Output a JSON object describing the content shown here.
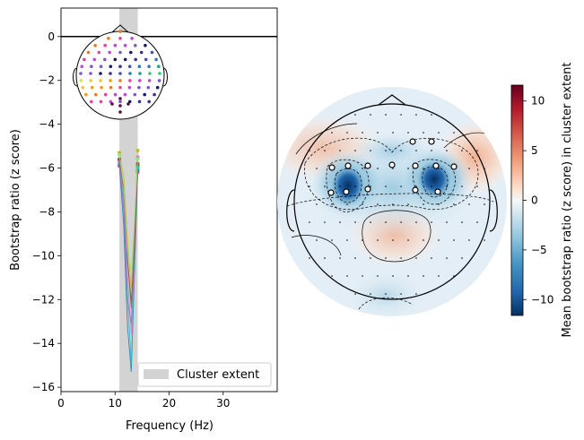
{
  "chart_data": [
    {
      "type": "line",
      "xlabel": "Frequency (Hz)",
      "ylabel": "Bootstrap ratio (z score)",
      "xlim": [
        0,
        40
      ],
      "ylim": [
        -16.2,
        1.3
      ],
      "xticks": [
        0,
        10,
        20,
        30
      ],
      "xtick_labels": [
        "0",
        "10",
        "20",
        "30"
      ],
      "yticks": [
        0,
        -2,
        -4,
        -6,
        -8,
        -10,
        -12,
        -14,
        -16
      ],
      "ytick_labels": [
        "0",
        "−2",
        "−4",
        "−6",
        "−8",
        "−10",
        "−12",
        "−14",
        "−16"
      ],
      "cluster_extent": [
        10.8,
        14.2
      ],
      "legend": {
        "label": "Cluster extent",
        "position": "lower-right"
      },
      "zero_line": 0,
      "series": [
        {
          "color": "#1f77b4",
          "x": [
            10.8,
            11.6,
            12.3,
            13.0,
            13.6,
            14.2
          ],
          "values": [
            -5.9,
            -8.6,
            -13.2,
            -15.3,
            -10.8,
            -6.1
          ]
        },
        {
          "color": "#2ca02c",
          "x": [
            10.8,
            11.6,
            12.3,
            13.0,
            13.6,
            14.2
          ],
          "values": [
            -5.6,
            -6.9,
            -10.1,
            -12.4,
            -9.2,
            -5.9
          ]
        },
        {
          "color": "#17becf",
          "x": [
            10.8,
            11.6,
            12.3,
            13.0,
            13.6,
            14.2
          ],
          "values": [
            -5.8,
            -7.6,
            -11.8,
            -14.9,
            -10.3,
            -6.0
          ]
        },
        {
          "color": "#e377c2",
          "x": [
            10.8,
            11.6,
            12.3,
            13.0,
            13.6,
            14.2
          ],
          "values": [
            -5.7,
            -7.2,
            -10.8,
            -13.6,
            -10.0,
            -5.5
          ]
        },
        {
          "color": "#9467bd",
          "x": [
            10.8,
            11.6,
            12.3,
            13.0,
            13.6,
            14.2
          ],
          "values": [
            -5.9,
            -7.9,
            -12.0,
            -13.1,
            -9.6,
            -6.2
          ]
        },
        {
          "color": "#bcbd22",
          "x": [
            10.8,
            11.6,
            12.3,
            13.0,
            13.6,
            14.2
          ],
          "values": [
            -5.3,
            -6.4,
            -9.2,
            -11.5,
            -8.6,
            -5.2
          ]
        },
        {
          "color": "#8c564b",
          "x": [
            10.8,
            11.6,
            12.3,
            13.0,
            13.6,
            14.2
          ],
          "values": [
            -5.6,
            -7.0,
            -10.2,
            -12.1,
            -9.7,
            -5.8
          ]
        },
        {
          "color": "#98df8a",
          "x": [
            10.8,
            11.6,
            12.3,
            13.0,
            13.6,
            14.2
          ],
          "values": [
            -5.4,
            -6.8,
            -9.8,
            -10.7,
            -8.4,
            -5.6
          ]
        }
      ]
    },
    {
      "type": "heatmap",
      "colorbar_label": "Mean bootstrap ratio (z score) in cluster extent",
      "colorbar_range": [
        -11.6,
        11.6
      ],
      "colorbar_ticks": [
        10,
        5,
        0,
        -5,
        -10
      ],
      "colorbar_tick_labels": [
        "10",
        "5",
        "0",
        "−5",
        "−10"
      ],
      "colormap": [
        "#053061",
        "#2166ac",
        "#4393c3",
        "#92c5de",
        "#d1e5f0",
        "#f7f7f7",
        "#fddbc7",
        "#f4a582",
        "#d6604d",
        "#b2182b",
        "#67001f"
      ]
    }
  ]
}
